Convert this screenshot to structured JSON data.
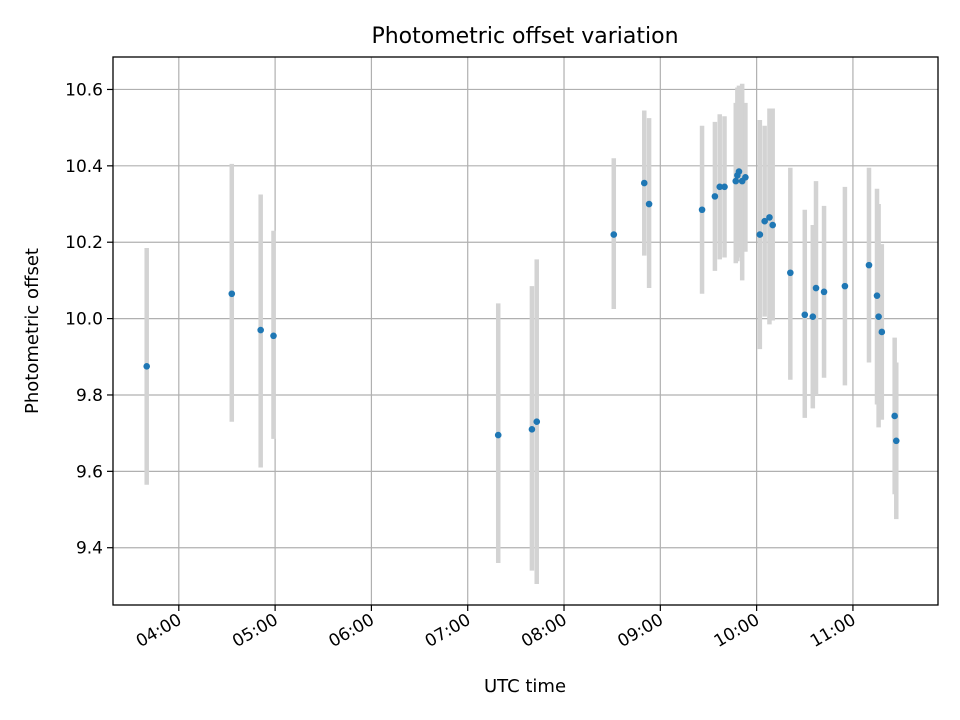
{
  "chart_data": {
    "type": "scatter",
    "title": "Photometric offset variation",
    "xlabel": "UTC time",
    "ylabel": "Photometric offset",
    "x_ticks": [
      "04:00",
      "05:00",
      "06:00",
      "07:00",
      "08:00",
      "09:00",
      "10:00",
      "11:00"
    ],
    "y_ticks": [
      "9.4",
      "9.6",
      "9.8",
      "10.0",
      "10.2",
      "10.4",
      "10.6"
    ],
    "xlim": [
      "03:19",
      "11:53"
    ],
    "ylim": [
      9.25,
      10.685
    ],
    "grid": true,
    "colors": {
      "point": "#1f77b4",
      "error_bar": "#d3d3d3",
      "grid": "#b0b0b0"
    },
    "points": [
      {
        "t": "03:40",
        "y": 9.875,
        "lo": 9.565,
        "hi": 10.185
      },
      {
        "t": "04:33",
        "y": 10.065,
        "lo": 9.73,
        "hi": 10.405
      },
      {
        "t": "04:51",
        "y": 9.97,
        "lo": 9.61,
        "hi": 10.325
      },
      {
        "t": "04:59",
        "y": 9.955,
        "lo": 9.685,
        "hi": 10.23
      },
      {
        "t": "07:19",
        "y": 9.695,
        "lo": 9.36,
        "hi": 10.04
      },
      {
        "t": "07:40",
        "y": 9.71,
        "lo": 9.34,
        "hi": 10.085
      },
      {
        "t": "07:43",
        "y": 9.73,
        "lo": 9.305,
        "hi": 10.155
      },
      {
        "t": "08:31",
        "y": 10.22,
        "lo": 10.025,
        "hi": 10.42
      },
      {
        "t": "08:50",
        "y": 10.355,
        "lo": 10.165,
        "hi": 10.545
      },
      {
        "t": "08:53",
        "y": 10.3,
        "lo": 10.08,
        "hi": 10.525
      },
      {
        "t": "09:26",
        "y": 10.285,
        "lo": 10.065,
        "hi": 10.505
      },
      {
        "t": "09:34",
        "y": 10.32,
        "lo": 10.125,
        "hi": 10.515
      },
      {
        "t": "09:37",
        "y": 10.345,
        "lo": 10.155,
        "hi": 10.535
      },
      {
        "t": "09:40",
        "y": 10.345,
        "lo": 10.16,
        "hi": 10.53
      },
      {
        "t": "09:47",
        "y": 10.36,
        "lo": 10.145,
        "hi": 10.565
      },
      {
        "t": "09:48",
        "y": 10.375,
        "lo": 10.15,
        "hi": 10.605
      },
      {
        "t": "09:49",
        "y": 10.385,
        "lo": 10.16,
        "hi": 10.61
      },
      {
        "t": "09:51",
        "y": 10.36,
        "lo": 10.1,
        "hi": 10.615
      },
      {
        "t": "09:53",
        "y": 10.37,
        "lo": 10.175,
        "hi": 10.565
      },
      {
        "t": "10:02",
        "y": 10.22,
        "lo": 9.92,
        "hi": 10.52
      },
      {
        "t": "10:05",
        "y": 10.255,
        "lo": 10.005,
        "hi": 10.505
      },
      {
        "t": "10:08",
        "y": 10.265,
        "lo": 9.985,
        "hi": 10.55
      },
      {
        "t": "10:10",
        "y": 10.245,
        "lo": 9.995,
        "hi": 10.55
      },
      {
        "t": "10:21",
        "y": 10.12,
        "lo": 9.84,
        "hi": 10.395
      },
      {
        "t": "10:30",
        "y": 10.01,
        "lo": 9.74,
        "hi": 10.285
      },
      {
        "t": "10:35",
        "y": 10.005,
        "lo": 9.765,
        "hi": 10.245
      },
      {
        "t": "10:37",
        "y": 10.08,
        "lo": 9.8,
        "hi": 10.36
      },
      {
        "t": "10:42",
        "y": 10.07,
        "lo": 9.845,
        "hi": 10.295
      },
      {
        "t": "10:55",
        "y": 10.085,
        "lo": 9.825,
        "hi": 10.345
      },
      {
        "t": "11:10",
        "y": 10.14,
        "lo": 9.885,
        "hi": 10.395
      },
      {
        "t": "11:15",
        "y": 10.06,
        "lo": 9.775,
        "hi": 10.34
      },
      {
        "t": "11:16",
        "y": 10.005,
        "lo": 9.715,
        "hi": 10.3
      },
      {
        "t": "11:18",
        "y": 9.965,
        "lo": 9.735,
        "hi": 10.195
      },
      {
        "t": "11:26",
        "y": 9.745,
        "lo": 9.54,
        "hi": 9.95
      },
      {
        "t": "11:27",
        "y": 9.68,
        "lo": 9.475,
        "hi": 9.885
      }
    ]
  }
}
